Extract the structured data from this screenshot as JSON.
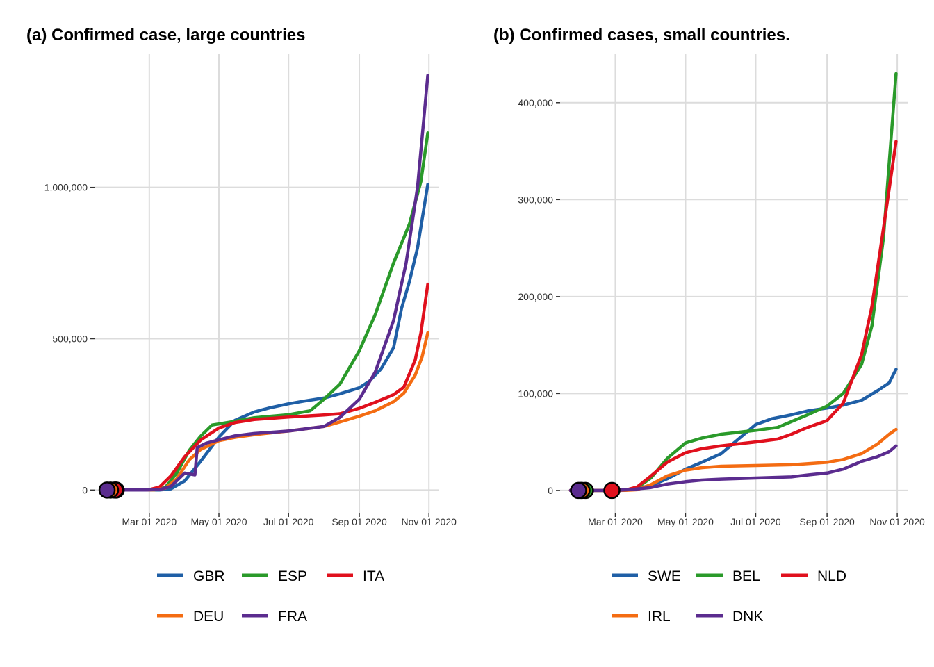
{
  "colors": {
    "GBR": "#1f5fa6",
    "ESP": "#2a9a2a",
    "ITA": "#e0101d",
    "DEU": "#f46c12",
    "FRA": "#5b2c8f",
    "SWE": "#1f5fa6",
    "BEL": "#2a9a2a",
    "NLD": "#e0101d",
    "IRL": "#f46c12",
    "DNK": "#5b2c8f"
  },
  "chart_data": [
    {
      "type": "line",
      "title": "(a) Confirmed case, large countries",
      "xlabel": "",
      "ylabel": "",
      "x_type": "date",
      "x_ticks": [
        "2020-03-01",
        "2020-05-01",
        "2020-07-01",
        "2020-09-01",
        "2020-11-01"
      ],
      "x_tick_labels": [
        "Mar 01 2020",
        "May 01 2020",
        "Jul 01 2020",
        "Sep 01 2020",
        "Nov 01 2020"
      ],
      "y_ticks": [
        0,
        500000,
        1000000
      ],
      "y_tick_labels": [
        "0",
        "500,000",
        "1,000,000"
      ],
      "xlim": [
        "2020-01-13",
        "2020-11-10"
      ],
      "ylim": [
        -75000,
        1440000
      ],
      "grid": true,
      "legend_position": "bottom",
      "legend_rows": [
        [
          "GBR",
          "ESP",
          "ITA"
        ],
        [
          "DEU",
          "FRA"
        ]
      ],
      "series": [
        {
          "name": "GBR",
          "start_marker": "2020-01-31",
          "points": [
            [
              "2020-01-22",
              0
            ],
            [
              "2020-02-28",
              0
            ],
            [
              "2020-03-10",
              400
            ],
            [
              "2020-03-20",
              4000
            ],
            [
              "2020-04-01",
              30000
            ],
            [
              "2020-04-15",
              95000
            ],
            [
              "2020-05-01",
              175000
            ],
            [
              "2020-05-15",
              230000
            ],
            [
              "2020-06-01",
              258000
            ],
            [
              "2020-06-15",
              272000
            ],
            [
              "2020-07-01",
              285000
            ],
            [
              "2020-07-15",
              294000
            ],
            [
              "2020-08-01",
              304000
            ],
            [
              "2020-08-15",
              318000
            ],
            [
              "2020-09-01",
              338000
            ],
            [
              "2020-09-10",
              360000
            ],
            [
              "2020-09-20",
              400000
            ],
            [
              "2020-10-01",
              470000
            ],
            [
              "2020-10-08",
              600000
            ],
            [
              "2020-10-15",
              690000
            ],
            [
              "2020-10-22",
              800000
            ],
            [
              "2020-10-31",
              1010000
            ]
          ]
        },
        {
          "name": "ESP",
          "start_marker": "2020-02-01",
          "points": [
            [
              "2020-01-22",
              0
            ],
            [
              "2020-02-25",
              0
            ],
            [
              "2020-03-05",
              300
            ],
            [
              "2020-03-15",
              8000
            ],
            [
              "2020-03-25",
              56000
            ],
            [
              "2020-04-05",
              131000
            ],
            [
              "2020-04-15",
              178000
            ],
            [
              "2020-04-25",
              215000
            ],
            [
              "2020-05-10",
              224000
            ],
            [
              "2020-06-01",
              239000
            ],
            [
              "2020-07-01",
              249000
            ],
            [
              "2020-07-20",
              262000
            ],
            [
              "2020-08-01",
              300000
            ],
            [
              "2020-08-15",
              350000
            ],
            [
              "2020-09-01",
              460000
            ],
            [
              "2020-09-15",
              580000
            ],
            [
              "2020-10-01",
              750000
            ],
            [
              "2020-10-15",
              880000
            ],
            [
              "2020-10-25",
              1020000
            ],
            [
              "2020-10-31",
              1180000
            ]
          ]
        },
        {
          "name": "ITA",
          "start_marker": "2020-01-31",
          "points": [
            [
              "2020-01-22",
              0
            ],
            [
              "2020-02-20",
              0
            ],
            [
              "2020-03-01",
              1500
            ],
            [
              "2020-03-10",
              10000
            ],
            [
              "2020-03-20",
              47000
            ],
            [
              "2020-04-01",
              110000
            ],
            [
              "2020-04-15",
              165000
            ],
            [
              "2020-05-01",
              205000
            ],
            [
              "2020-05-15",
              223000
            ],
            [
              "2020-06-01",
              233000
            ],
            [
              "2020-07-01",
              241000
            ],
            [
              "2020-08-01",
              248000
            ],
            [
              "2020-08-15",
              252000
            ],
            [
              "2020-09-01",
              270000
            ],
            [
              "2020-09-15",
              290000
            ],
            [
              "2020-10-01",
              315000
            ],
            [
              "2020-10-10",
              340000
            ],
            [
              "2020-10-20",
              430000
            ],
            [
              "2020-10-25",
              520000
            ],
            [
              "2020-10-31",
              680000
            ]
          ]
        },
        {
          "name": "DEU",
          "start_marker": "2020-01-27",
          "points": [
            [
              "2020-01-22",
              0
            ],
            [
              "2020-02-26",
              0
            ],
            [
              "2020-03-05",
              500
            ],
            [
              "2020-03-15",
              6000
            ],
            [
              "2020-03-25",
              37000
            ],
            [
              "2020-04-05",
              100000
            ],
            [
              "2020-04-15",
              134000
            ],
            [
              "2020-05-01",
              163000
            ],
            [
              "2020-05-15",
              174000
            ],
            [
              "2020-06-01",
              183000
            ],
            [
              "2020-07-01",
              195000
            ],
            [
              "2020-08-01",
              210000
            ],
            [
              "2020-08-15",
              225000
            ],
            [
              "2020-09-01",
              244000
            ],
            [
              "2020-09-15",
              262000
            ],
            [
              "2020-10-01",
              292000
            ],
            [
              "2020-10-10",
              320000
            ],
            [
              "2020-10-20",
              380000
            ],
            [
              "2020-10-26",
              440000
            ],
            [
              "2020-10-31",
              520000
            ]
          ]
        },
        {
          "name": "FRA",
          "start_marker": "2020-01-24",
          "points": [
            [
              "2020-01-22",
              0
            ],
            [
              "2020-02-28",
              0
            ],
            [
              "2020-03-10",
              1800
            ],
            [
              "2020-03-20",
              12000
            ],
            [
              "2020-04-01",
              56000
            ],
            [
              "2020-04-10",
              50000
            ],
            [
              "2020-04-12",
              140000
            ],
            [
              "2020-04-20",
              155000
            ],
            [
              "2020-05-01",
              166000
            ],
            [
              "2020-05-15",
              179000
            ],
            [
              "2020-06-01",
              187000
            ],
            [
              "2020-07-01",
              195000
            ],
            [
              "2020-08-01",
              210000
            ],
            [
              "2020-08-15",
              240000
            ],
            [
              "2020-09-01",
              300000
            ],
            [
              "2020-09-15",
              390000
            ],
            [
              "2020-10-01",
              560000
            ],
            [
              "2020-10-12",
              750000
            ],
            [
              "2020-10-22",
              1000000
            ],
            [
              "2020-10-31",
              1370000
            ]
          ]
        }
      ]
    },
    {
      "type": "line",
      "title": "(b) Confirmed cases, small countries.",
      "xlabel": "",
      "ylabel": "",
      "x_type": "date",
      "x_ticks": [
        "2020-03-01",
        "2020-05-01",
        "2020-07-01",
        "2020-09-01",
        "2020-11-01"
      ],
      "x_tick_labels": [
        "Mar 01 2020",
        "May 01 2020",
        "Jul 01 2020",
        "Sep 01 2020",
        "Nov 01 2020"
      ],
      "y_ticks": [
        0,
        100000,
        200000,
        300000,
        400000
      ],
      "y_tick_labels": [
        "0",
        "100,000",
        "200,000",
        "300,000",
        "400,000"
      ],
      "xlim": [
        "2020-01-13",
        "2020-11-10"
      ],
      "ylim": [
        -23000,
        450000
      ],
      "grid": true,
      "legend_position": "bottom",
      "legend_rows": [
        [
          "SWE",
          "BEL",
          "NLD"
        ],
        [
          "IRL",
          "DNK"
        ]
      ],
      "series": [
        {
          "name": "SWE",
          "start_marker": "2020-01-31",
          "points": [
            [
              "2020-01-22",
              0
            ],
            [
              "2020-02-28",
              0
            ],
            [
              "2020-03-15",
              1000
            ],
            [
              "2020-04-01",
              5000
            ],
            [
              "2020-04-15",
              12000
            ],
            [
              "2020-05-01",
              22000
            ],
            [
              "2020-05-15",
              29000
            ],
            [
              "2020-06-01",
              38000
            ],
            [
              "2020-06-15",
              52000
            ],
            [
              "2020-07-01",
              68000
            ],
            [
              "2020-07-15",
              74000
            ],
            [
              "2020-08-01",
              78000
            ],
            [
              "2020-08-15",
              82000
            ],
            [
              "2020-09-01",
              85000
            ],
            [
              "2020-09-15",
              88000
            ],
            [
              "2020-10-01",
              93000
            ],
            [
              "2020-10-15",
              103000
            ],
            [
              "2020-10-25",
              111000
            ],
            [
              "2020-10-31",
              125000
            ]
          ]
        },
        {
          "name": "BEL",
          "start_marker": "2020-02-04",
          "points": [
            [
              "2020-01-22",
              0
            ],
            [
              "2020-03-01",
              0
            ],
            [
              "2020-03-10",
              300
            ],
            [
              "2020-03-20",
              2800
            ],
            [
              "2020-04-01",
              13000
            ],
            [
              "2020-04-15",
              33000
            ],
            [
              "2020-05-01",
              49000
            ],
            [
              "2020-05-15",
              54000
            ],
            [
              "2020-06-01",
              58000
            ],
            [
              "2020-07-01",
              62000
            ],
            [
              "2020-07-20",
              65000
            ],
            [
              "2020-08-01",
              71000
            ],
            [
              "2020-08-15",
              78000
            ],
            [
              "2020-09-01",
              87000
            ],
            [
              "2020-09-15",
              100000
            ],
            [
              "2020-10-01",
              130000
            ],
            [
              "2020-10-10",
              170000
            ],
            [
              "2020-10-20",
              260000
            ],
            [
              "2020-10-31",
              430000
            ]
          ]
        },
        {
          "name": "NLD",
          "start_marker": "2020-02-27",
          "points": [
            [
              "2020-01-22",
              0
            ],
            [
              "2020-03-01",
              0
            ],
            [
              "2020-03-10",
              400
            ],
            [
              "2020-03-20",
              3600
            ],
            [
              "2020-04-01",
              15000
            ],
            [
              "2020-04-15",
              29000
            ],
            [
              "2020-05-01",
              39000
            ],
            [
              "2020-05-15",
              43000
            ],
            [
              "2020-06-01",
              46000
            ],
            [
              "2020-07-01",
              50000
            ],
            [
              "2020-07-20",
              53000
            ],
            [
              "2020-08-01",
              58000
            ],
            [
              "2020-08-15",
              65000
            ],
            [
              "2020-09-01",
              72000
            ],
            [
              "2020-09-15",
              90000
            ],
            [
              "2020-10-01",
              140000
            ],
            [
              "2020-10-10",
              190000
            ],
            [
              "2020-10-20",
              270000
            ],
            [
              "2020-10-31",
              360000
            ]
          ]
        },
        {
          "name": "IRL",
          "start_marker": "2020-02-01",
          "points": [
            [
              "2020-01-22",
              0
            ],
            [
              "2020-03-01",
              0
            ],
            [
              "2020-03-10",
              100
            ],
            [
              "2020-03-20",
              700
            ],
            [
              "2020-04-01",
              6000
            ],
            [
              "2020-04-15",
              15000
            ],
            [
              "2020-05-01",
              21000
            ],
            [
              "2020-05-15",
              23500
            ],
            [
              "2020-06-01",
              25000
            ],
            [
              "2020-07-01",
              25700
            ],
            [
              "2020-08-01",
              26500
            ],
            [
              "2020-09-01",
              29000
            ],
            [
              "2020-09-15",
              32000
            ],
            [
              "2020-10-01",
              38000
            ],
            [
              "2020-10-15",
              48000
            ],
            [
              "2020-10-25",
              58000
            ],
            [
              "2020-10-31",
              63000
            ]
          ]
        },
        {
          "name": "DNK",
          "start_marker": "2020-01-29",
          "points": [
            [
              "2020-01-22",
              0
            ],
            [
              "2020-03-01",
              0
            ],
            [
              "2020-03-15",
              1000
            ],
            [
              "2020-04-01",
              3000
            ],
            [
              "2020-04-15",
              6500
            ],
            [
              "2020-05-01",
              9000
            ],
            [
              "2020-05-15",
              10700
            ],
            [
              "2020-06-01",
              11700
            ],
            [
              "2020-07-01",
              12800
            ],
            [
              "2020-08-01",
              14000
            ],
            [
              "2020-08-15",
              16000
            ],
            [
              "2020-09-01",
              18000
            ],
            [
              "2020-09-15",
              22000
            ],
            [
              "2020-10-01",
              30000
            ],
            [
              "2020-10-15",
              35000
            ],
            [
              "2020-10-25",
              40000
            ],
            [
              "2020-10-31",
              46000
            ]
          ]
        }
      ]
    }
  ]
}
